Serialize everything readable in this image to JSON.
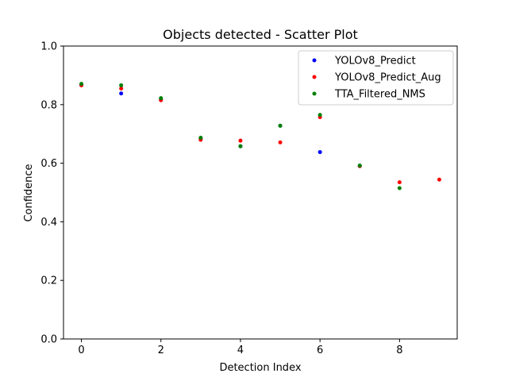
{
  "chart_data": {
    "type": "scatter",
    "title": "Objects detected - Scatter Plot",
    "xlabel": "Detection Index",
    "ylabel": "Confidence",
    "xlim": [
      -0.45,
      9.45
    ],
    "ylim": [
      0.0,
      1.0
    ],
    "x_ticks": [
      0,
      2,
      4,
      6,
      8
    ],
    "x_tick_labels": [
      "0",
      "2",
      "4",
      "6",
      "8"
    ],
    "y_ticks": [
      0.0,
      0.2,
      0.4,
      0.6,
      0.8,
      1.0
    ],
    "y_tick_labels": [
      "0.0",
      "0.2",
      "0.4",
      "0.6",
      "0.8",
      "1.0"
    ],
    "grid": false,
    "legend_position": "top-right",
    "series": [
      {
        "name": "YOLOv8_Predict",
        "color": "#0000ff",
        "x": [
          0,
          1,
          2,
          3,
          4,
          5,
          6,
          7
        ],
        "y": [
          0.868,
          0.838,
          0.818,
          0.685,
          0.658,
          0.728,
          0.638,
          0.59
        ]
      },
      {
        "name": "YOLOv8_Predict_Aug",
        "color": "#ff0000",
        "x": [
          0,
          1,
          2,
          3,
          4,
          5,
          6,
          7,
          8,
          9
        ],
        "y": [
          0.866,
          0.855,
          0.815,
          0.68,
          0.677,
          0.671,
          0.757,
          0.59,
          0.535,
          0.544
        ]
      },
      {
        "name": "TTA_Filtered_NMS",
        "color": "#008000",
        "x": [
          0,
          1,
          2,
          3,
          4,
          5,
          6,
          7,
          8
        ],
        "y": [
          0.871,
          0.866,
          0.822,
          0.687,
          0.658,
          0.728,
          0.765,
          0.592,
          0.515
        ]
      }
    ]
  }
}
